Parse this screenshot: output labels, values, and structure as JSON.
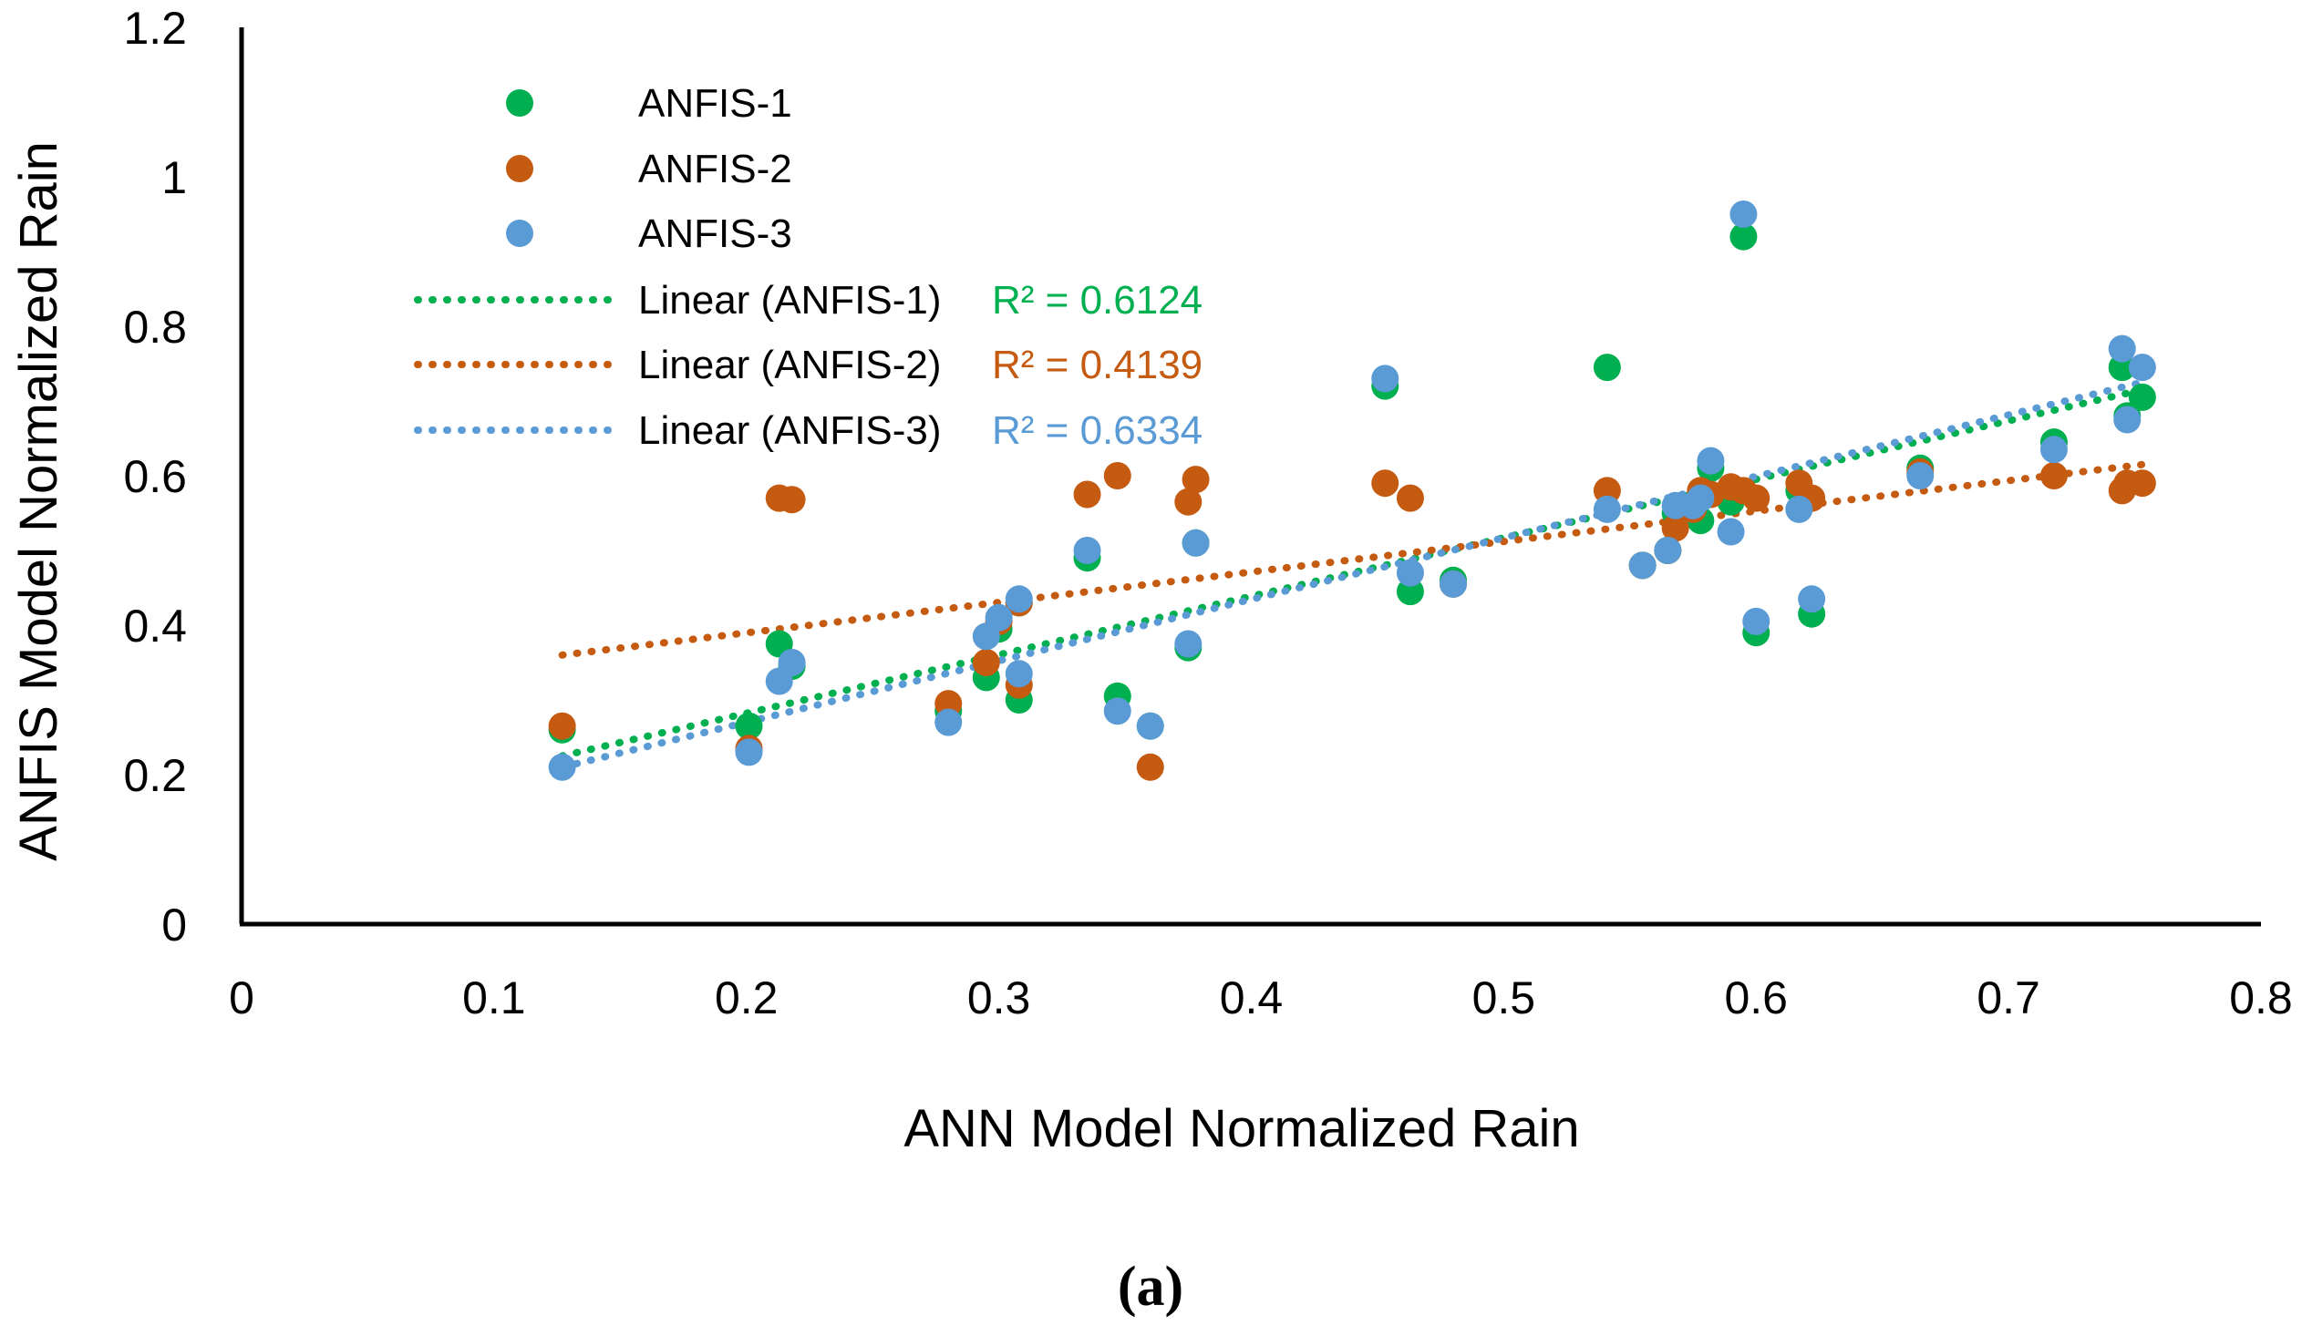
{
  "chart_data": {
    "type": "scatter",
    "xlabel": "ANN Model Normalized Rain",
    "ylabel": "ANFIS Model Normalized Rain",
    "xlim": [
      0,
      0.8
    ],
    "ylim": [
      0,
      1.2
    ],
    "xticks": [
      0,
      0.1,
      0.2,
      0.3,
      0.4,
      0.5,
      0.6,
      0.7,
      0.8
    ],
    "yticks": [
      0,
      0.2,
      0.4,
      0.6,
      0.8,
      1,
      1.2
    ],
    "xtick_labels": [
      "0",
      "0.1",
      "0.2",
      "0.3",
      "0.4",
      "0.5",
      "0.6",
      "0.7",
      "0.8"
    ],
    "ytick_labels": [
      "0",
      "0.2",
      "0.4",
      "0.6",
      "0.8",
      "1",
      "1.2"
    ],
    "grid": false,
    "legend_position": "top-left",
    "series": [
      {
        "name": "ANFIS-1",
        "color": "#00b050",
        "x": [
          0.127,
          0.201,
          0.213,
          0.218,
          0.28,
          0.295,
          0.3,
          0.308,
          0.308,
          0.335,
          0.347,
          0.36,
          0.375,
          0.378,
          0.453,
          0.463,
          0.48,
          0.541,
          0.555,
          0.565,
          0.568,
          0.575,
          0.578,
          0.582,
          0.59,
          0.595,
          0.6,
          0.617,
          0.622,
          0.665,
          0.718,
          0.745,
          0.747,
          0.753
        ],
        "y": [
          0.26,
          0.265,
          0.375,
          0.345,
          0.285,
          0.33,
          0.395,
          0.43,
          0.3,
          0.49,
          0.305,
          0.265,
          0.37,
          0.51,
          0.72,
          0.445,
          0.46,
          0.745,
          0.48,
          0.5,
          0.55,
          0.56,
          0.54,
          0.61,
          0.565,
          0.92,
          0.39,
          0.58,
          0.415,
          0.61,
          0.645,
          0.745,
          0.68,
          0.705
        ]
      },
      {
        "name": "ANFIS-2",
        "color": "#c55a11",
        "x": [
          0.127,
          0.201,
          0.213,
          0.218,
          0.28,
          0.295,
          0.3,
          0.308,
          0.308,
          0.335,
          0.347,
          0.36,
          0.375,
          0.378,
          0.453,
          0.463,
          0.48,
          0.541,
          0.555,
          0.565,
          0.568,
          0.575,
          0.578,
          0.582,
          0.59,
          0.595,
          0.6,
          0.617,
          0.622,
          0.665,
          0.718,
          0.745,
          0.747,
          0.753
        ],
        "y": [
          0.265,
          0.235,
          0.57,
          0.568,
          0.295,
          0.35,
          0.405,
          0.43,
          0.32,
          0.575,
          0.6,
          0.21,
          0.565,
          0.595,
          0.59,
          0.57,
          0.455,
          0.58,
          0.48,
          0.5,
          0.53,
          0.555,
          0.58,
          0.575,
          0.585,
          0.58,
          0.57,
          0.59,
          0.57,
          0.605,
          0.6,
          0.58,
          0.59,
          0.59
        ]
      },
      {
        "name": "ANFIS-3",
        "color": "#5b9bd5",
        "x": [
          0.127,
          0.201,
          0.213,
          0.218,
          0.28,
          0.295,
          0.3,
          0.308,
          0.308,
          0.335,
          0.347,
          0.36,
          0.375,
          0.378,
          0.453,
          0.463,
          0.48,
          0.541,
          0.555,
          0.565,
          0.568,
          0.575,
          0.578,
          0.582,
          0.59,
          0.595,
          0.6,
          0.617,
          0.622,
          0.665,
          0.718,
          0.745,
          0.747,
          0.753
        ],
        "y": [
          0.21,
          0.23,
          0.325,
          0.35,
          0.27,
          0.385,
          0.41,
          0.435,
          0.335,
          0.5,
          0.285,
          0.265,
          0.375,
          0.51,
          0.73,
          0.47,
          0.455,
          0.555,
          0.48,
          0.5,
          0.56,
          0.56,
          0.57,
          0.62,
          0.525,
          0.95,
          0.405,
          0.555,
          0.435,
          0.6,
          0.635,
          0.77,
          0.675,
          0.745
        ]
      }
    ],
    "trendlines": [
      {
        "name": "Linear (ANFIS-1)",
        "color": "#00b050",
        "x": [
          0.127,
          0.753
        ],
        "y": [
          0.225,
          0.715
        ],
        "r2_text": "R² = 0.6124"
      },
      {
        "name": "Linear (ANFIS-2)",
        "color": "#c55a11",
        "x": [
          0.127,
          0.753
        ],
        "y": [
          0.36,
          0.615
        ],
        "r2_text": "R² = 0.4139"
      },
      {
        "name": "Linear (ANFIS-3)",
        "color": "#5b9bd5",
        "x": [
          0.127,
          0.753
        ],
        "y": [
          0.21,
          0.725
        ],
        "r2_text": "R² = 0.6334"
      }
    ],
    "caption": "(a)"
  }
}
